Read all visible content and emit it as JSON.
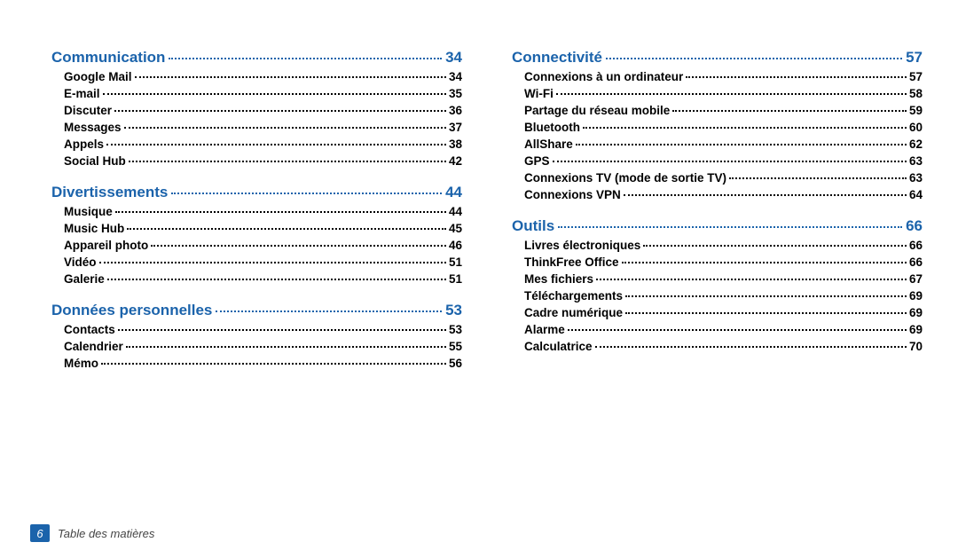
{
  "accent_color": "#1b63ab",
  "footer": {
    "page_number": "6",
    "label": "Table des matières"
  },
  "columns": [
    {
      "sections": [
        {
          "title": "Communication",
          "page": "34",
          "entries": [
            {
              "title": "Google Mail",
              "page": "34"
            },
            {
              "title": "E-mail",
              "page": "35"
            },
            {
              "title": "Discuter",
              "page": "36"
            },
            {
              "title": "Messages",
              "page": "37"
            },
            {
              "title": "Appels",
              "page": "38"
            },
            {
              "title": "Social Hub",
              "page": "42"
            }
          ]
        },
        {
          "title": "Divertissements",
          "page": "44",
          "entries": [
            {
              "title": "Musique",
              "page": "44"
            },
            {
              "title": "Music Hub",
              "page": "45"
            },
            {
              "title": "Appareil photo",
              "page": "46"
            },
            {
              "title": "Vidéo",
              "page": "51"
            },
            {
              "title": "Galerie",
              "page": "51"
            }
          ]
        },
        {
          "title": "Données personnelles",
          "page": "53",
          "entries": [
            {
              "title": "Contacts",
              "page": "53"
            },
            {
              "title": "Calendrier",
              "page": "55"
            },
            {
              "title": "Mémo",
              "page": "56"
            }
          ]
        }
      ]
    },
    {
      "sections": [
        {
          "title": "Connectivité",
          "page": "57",
          "entries": [
            {
              "title": "Connexions à un ordinateur",
              "page": "57"
            },
            {
              "title": "Wi-Fi",
              "page": "58"
            },
            {
              "title": "Partage du réseau mobile",
              "page": "59"
            },
            {
              "title": "Bluetooth",
              "page": "60"
            },
            {
              "title": "AllShare",
              "page": "62"
            },
            {
              "title": "GPS",
              "page": "63"
            },
            {
              "title": "Connexions TV (mode de sortie TV)",
              "page": "63"
            },
            {
              "title": "Connexions VPN",
              "page": "64"
            }
          ]
        },
        {
          "title": "Outils",
          "page": "66",
          "entries": [
            {
              "title": "Livres électroniques",
              "page": "66"
            },
            {
              "title": "ThinkFree Office",
              "page": "66"
            },
            {
              "title": "Mes fichiers",
              "page": "67"
            },
            {
              "title": "Téléchargements",
              "page": "69"
            },
            {
              "title": "Cadre numérique",
              "page": "69"
            },
            {
              "title": "Alarme",
              "page": "69"
            },
            {
              "title": "Calculatrice",
              "page": "70"
            }
          ]
        }
      ]
    }
  ]
}
